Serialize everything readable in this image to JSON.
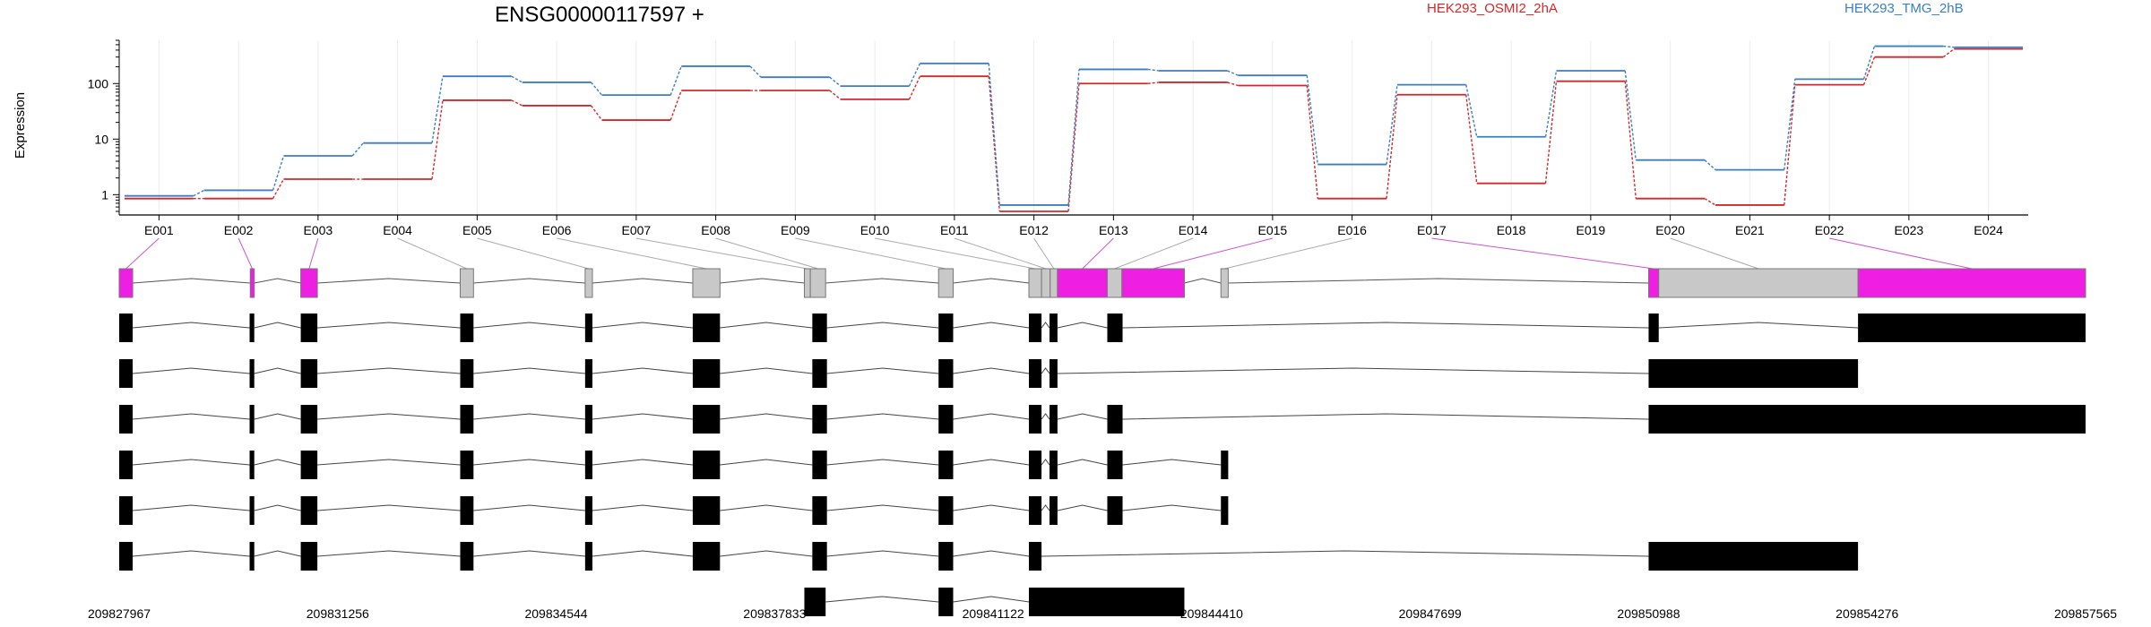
{
  "chart_data": {
    "type": "line",
    "title": "ENSG00000117597 +",
    "ylabel": "Expression",
    "yscale": "log",
    "ylim": [
      0.5,
      600
    ],
    "y_ticks": [
      "1",
      "10",
      "100"
    ],
    "categories": [
      "E001",
      "E002",
      "E003",
      "E004",
      "E005",
      "E006",
      "E007",
      "E008",
      "E009",
      "E010",
      "E011",
      "E012",
      "E013",
      "E014",
      "E015",
      "E016",
      "E017",
      "E018",
      "E019",
      "E020",
      "E021",
      "E022",
      "E023",
      "E024"
    ],
    "grid": "vertical",
    "legend_placement": "top-right",
    "series": [
      {
        "name": "HEK293_OSMI2_2hA",
        "color": "#d62728",
        "values": [
          0.85,
          0.85,
          1.9,
          1.9,
          50,
          40,
          22,
          75,
          75,
          52,
          135,
          0.5,
          100,
          105,
          92,
          0.85,
          63,
          1.6,
          110,
          0.85,
          0.65,
          95,
          300,
          420
        ]
      },
      {
        "name": "HEK293_TMG_2hB",
        "color": "#3a7fc1",
        "values": [
          0.95,
          1.2,
          5,
          8.5,
          135,
          105,
          62,
          205,
          130,
          90,
          230,
          0.65,
          180,
          170,
          140,
          3.5,
          95,
          11,
          170,
          4.2,
          2.8,
          120,
          470,
          450
        ]
      }
    ],
    "genome": {
      "start": 209827967,
      "end": 209857565,
      "axis_labels": [
        "209827967",
        "209831256",
        "209834544",
        "209837833",
        "209841122",
        "209844410",
        "209847699",
        "209850988",
        "209854276",
        "209857565"
      ],
      "exon_track": [
        {
          "s": 209827967,
          "e": 209828170,
          "c": "magenta",
          "n": "E001"
        },
        {
          "s": 209829940,
          "e": 209830000,
          "c": "magenta",
          "n": "E002"
        },
        {
          "s": 209830700,
          "e": 209830950,
          "c": "magenta",
          "n": "E003"
        },
        {
          "s": 209833100,
          "e": 209833300,
          "c": "gray",
          "n": "E004"
        },
        {
          "s": 209834980,
          "e": 209835090,
          "c": "gray",
          "n": "E005"
        },
        {
          "s": 209836600,
          "e": 209837010,
          "c": "gray",
          "n": "E006"
        },
        {
          "s": 209838280,
          "e": 209838370,
          "c": "gray",
          "n": "E007"
        },
        {
          "s": 209838370,
          "e": 209838600,
          "c": "gray",
          "n": "E008"
        },
        {
          "s": 209840300,
          "e": 209840520,
          "c": "gray",
          "n": "E009"
        },
        {
          "s": 209841660,
          "e": 209841850,
          "c": "gray",
          "n": "E010"
        },
        {
          "s": 209841850,
          "e": 209841980,
          "c": "gray",
          "n": "E011"
        },
        {
          "s": 209841980,
          "e": 209842090,
          "c": "gray",
          "n": "E012"
        },
        {
          "s": 209842090,
          "e": 209842840,
          "c": "magenta",
          "n": "E013"
        },
        {
          "s": 209842840,
          "e": 209843060,
          "c": "gray",
          "n": "E014"
        },
        {
          "s": 209843060,
          "e": 209844000,
          "c": "magenta",
          "n": "E015"
        },
        {
          "s": 209844550,
          "e": 209844660,
          "c": "gray",
          "n": "E016"
        },
        {
          "s": 209850988,
          "e": 209851140,
          "c": "magenta",
          "n": "E017"
        },
        {
          "s": 209851140,
          "e": 209854140,
          "c": "gray",
          "n": "E020"
        },
        {
          "s": 209854140,
          "e": 209857565,
          "c": "magenta",
          "n": "E022"
        }
      ],
      "transcripts": [
        [
          [
            209827967,
            209828170
          ],
          [
            209829930,
            209830000
          ],
          [
            209830700,
            209830950
          ],
          [
            209833100,
            209833300
          ],
          [
            209834980,
            209835090
          ],
          [
            209836600,
            209837010
          ],
          [
            209838400,
            209838620
          ],
          [
            209840300,
            209840520
          ],
          [
            209841660,
            209841850
          ],
          [
            209841970,
            209842090
          ],
          [
            209842840,
            209843070
          ],
          [
            209850988,
            209851140
          ],
          [
            209854140,
            209857565
          ]
        ],
        [
          [
            209827967,
            209828170
          ],
          [
            209829930,
            209830000
          ],
          [
            209830700,
            209830950
          ],
          [
            209833100,
            209833300
          ],
          [
            209834980,
            209835090
          ],
          [
            209836600,
            209837010
          ],
          [
            209838400,
            209838620
          ],
          [
            209840300,
            209840520
          ],
          [
            209841660,
            209841850
          ],
          [
            209841970,
            209842090
          ],
          [
            209850988,
            209854140
          ]
        ],
        [
          [
            209827967,
            209828170
          ],
          [
            209829930,
            209830000
          ],
          [
            209830700,
            209830950
          ],
          [
            209833100,
            209833300
          ],
          [
            209834980,
            209835090
          ],
          [
            209836600,
            209837010
          ],
          [
            209838400,
            209838620
          ],
          [
            209840300,
            209840520
          ],
          [
            209841660,
            209841850
          ],
          [
            209841970,
            209842090
          ],
          [
            209842840,
            209843070
          ],
          [
            209850988,
            209857565
          ]
        ],
        [
          [
            209827967,
            209828170
          ],
          [
            209829930,
            209830000
          ],
          [
            209830700,
            209830950
          ],
          [
            209833100,
            209833300
          ],
          [
            209834980,
            209835090
          ],
          [
            209836600,
            209837010
          ],
          [
            209838400,
            209838620
          ],
          [
            209840300,
            209840520
          ],
          [
            209841660,
            209841850
          ],
          [
            209841970,
            209842090
          ],
          [
            209842840,
            209843070
          ],
          [
            209844550,
            209844660
          ]
        ],
        [
          [
            209827967,
            209828170
          ],
          [
            209829930,
            209830000
          ],
          [
            209830700,
            209830950
          ],
          [
            209833100,
            209833300
          ],
          [
            209834980,
            209835090
          ],
          [
            209836600,
            209837010
          ],
          [
            209838400,
            209838620
          ],
          [
            209840300,
            209840520
          ],
          [
            209841660,
            209841850
          ],
          [
            209841970,
            209842090
          ],
          [
            209842840,
            209843070
          ],
          [
            209844550,
            209844660
          ]
        ],
        [
          [
            209827967,
            209828170
          ],
          [
            209829930,
            209830000
          ],
          [
            209830700,
            209830950
          ],
          [
            209833100,
            209833300
          ],
          [
            209834980,
            209835090
          ],
          [
            209836600,
            209837010
          ],
          [
            209838400,
            209838620
          ],
          [
            209840300,
            209840520
          ],
          [
            209841660,
            209841850
          ],
          [
            209850988,
            209854140
          ]
        ],
        [
          [
            209838280,
            209838600
          ],
          [
            209840300,
            209840520
          ],
          [
            209841660,
            209844000
          ]
        ]
      ]
    }
  }
}
